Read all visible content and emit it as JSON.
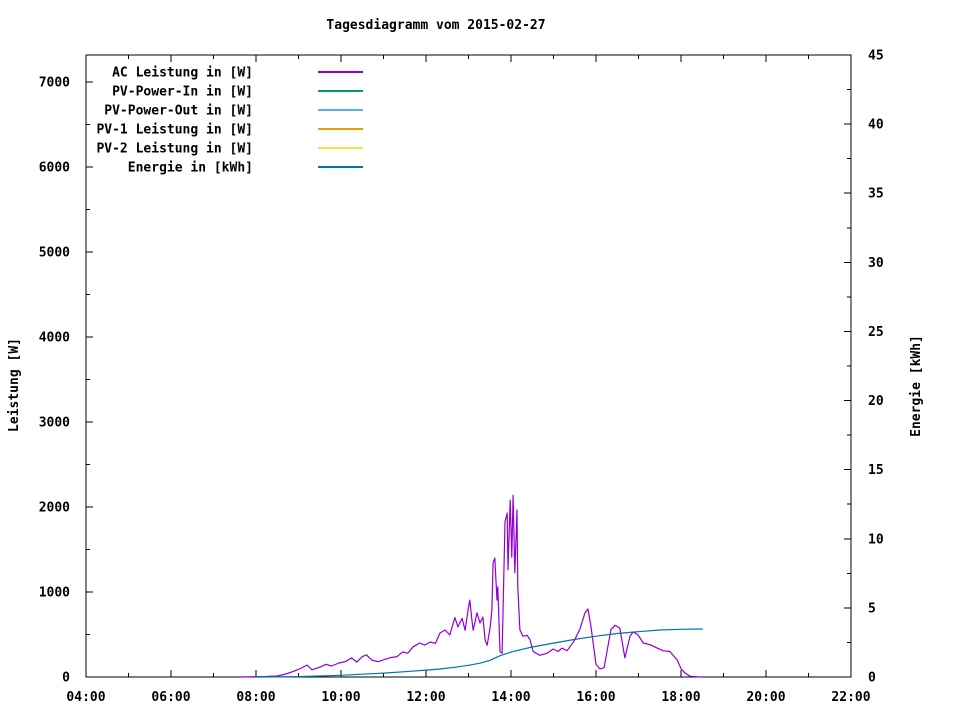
{
  "chart_data": {
    "type": "line",
    "title": "Tagesdiagramm vom 2015-02-27",
    "x_axis": {
      "range_hours": [
        4,
        22
      ],
      "minor_step_hours": 1,
      "major_ticks": [
        {
          "value": 4,
          "label": "04:00"
        },
        {
          "value": 6,
          "label": "06:00"
        },
        {
          "value": 8,
          "label": "08:00"
        },
        {
          "value": 10,
          "label": "10:00"
        },
        {
          "value": 12,
          "label": "12:00"
        },
        {
          "value": 14,
          "label": "14:00"
        },
        {
          "value": 16,
          "label": "16:00"
        },
        {
          "value": 18,
          "label": "18:00"
        },
        {
          "value": 20,
          "label": "20:00"
        },
        {
          "value": 22,
          "label": "22:00"
        }
      ]
    },
    "y_left_axis": {
      "label": "Leistung [W]",
      "range": [
        0,
        7320
      ],
      "minor_step": 500,
      "major_ticks": [
        {
          "value": 0,
          "label": "0"
        },
        {
          "value": 1000,
          "label": "1000"
        },
        {
          "value": 2000,
          "label": "2000"
        },
        {
          "value": 3000,
          "label": "3000"
        },
        {
          "value": 4000,
          "label": "4000"
        },
        {
          "value": 5000,
          "label": "5000"
        },
        {
          "value": 6000,
          "label": "6000"
        },
        {
          "value": 7000,
          "label": "7000"
        }
      ]
    },
    "y_right_axis": {
      "label": "Energie [kWh]",
      "range": [
        0,
        45
      ],
      "minor_step": 2.5,
      "major_ticks": [
        {
          "value": 0,
          "label": "0"
        },
        {
          "value": 5,
          "label": "5"
        },
        {
          "value": 10,
          "label": "10"
        },
        {
          "value": 15,
          "label": "15"
        },
        {
          "value": 20,
          "label": "20"
        },
        {
          "value": 25,
          "label": "25"
        },
        {
          "value": 30,
          "label": "30"
        },
        {
          "value": 35,
          "label": "35"
        },
        {
          "value": 40,
          "label": "40"
        },
        {
          "value": 45,
          "label": "45"
        }
      ]
    },
    "legend": [
      {
        "label": "AC Leistung in [W]",
        "color": "#9400D3"
      },
      {
        "label": "PV-Power-In in [W]",
        "color": "#009E73"
      },
      {
        "label": "PV-Power-Out in [W]",
        "color": "#56B4E9"
      },
      {
        "label": "PV-1 Leistung in [W]",
        "color": "#E69F00"
      },
      {
        "label": "PV-2 Leistung in [W]",
        "color": "#F0E442"
      },
      {
        "label": "Energie in [kWh]",
        "color": "#0072B2"
      }
    ],
    "series": [
      {
        "name": "AC Leistung in [W]",
        "axis": "left",
        "color": "#9400D3",
        "points": [
          [
            7.67,
            0
          ],
          [
            7.95,
            3
          ],
          [
            8.25,
            6
          ],
          [
            8.5,
            12
          ],
          [
            8.7,
            35
          ],
          [
            8.9,
            70
          ],
          [
            9.05,
            100
          ],
          [
            9.2,
            140
          ],
          [
            9.32,
            85
          ],
          [
            9.5,
            115
          ],
          [
            9.65,
            150
          ],
          [
            9.78,
            130
          ],
          [
            9.95,
            165
          ],
          [
            10.1,
            180
          ],
          [
            10.25,
            225
          ],
          [
            10.37,
            175
          ],
          [
            10.5,
            240
          ],
          [
            10.6,
            260
          ],
          [
            10.72,
            200
          ],
          [
            10.87,
            180
          ],
          [
            11.02,
            205
          ],
          [
            11.17,
            228
          ],
          [
            11.32,
            240
          ],
          [
            11.45,
            295
          ],
          [
            11.57,
            280
          ],
          [
            11.7,
            355
          ],
          [
            11.85,
            400
          ],
          [
            11.97,
            375
          ],
          [
            12.1,
            412
          ],
          [
            12.22,
            395
          ],
          [
            12.33,
            518
          ],
          [
            12.45,
            553
          ],
          [
            12.56,
            495
          ],
          [
            12.68,
            700
          ],
          [
            12.75,
            590
          ],
          [
            12.85,
            690
          ],
          [
            12.92,
            550
          ],
          [
            12.99,
            790
          ],
          [
            13.03,
            905
          ],
          [
            13.08,
            670
          ],
          [
            13.11,
            550
          ],
          [
            13.2,
            755
          ],
          [
            13.27,
            635
          ],
          [
            13.34,
            705
          ],
          [
            13.39,
            435
          ],
          [
            13.44,
            375
          ],
          [
            13.51,
            590
          ],
          [
            13.55,
            790
          ],
          [
            13.58,
            1340
          ],
          [
            13.62,
            1400
          ],
          [
            13.67,
            905
          ],
          [
            13.69,
            1060
          ],
          [
            13.74,
            295
          ],
          [
            13.79,
            280
          ],
          [
            13.81,
            705
          ],
          [
            13.86,
            1825
          ],
          [
            13.91,
            1930
          ],
          [
            13.93,
            1260
          ],
          [
            13.98,
            2080
          ],
          [
            14.02,
            1410
          ],
          [
            14.05,
            2140
          ],
          [
            14.09,
            1225
          ],
          [
            14.14,
            1965
          ],
          [
            14.16,
            1060
          ],
          [
            14.21,
            555
          ],
          [
            14.28,
            480
          ],
          [
            14.38,
            490
          ],
          [
            14.45,
            435
          ],
          [
            14.52,
            300
          ],
          [
            14.68,
            255
          ],
          [
            14.85,
            280
          ],
          [
            14.99,
            330
          ],
          [
            15.11,
            300
          ],
          [
            15.2,
            340
          ],
          [
            15.32,
            310
          ],
          [
            15.48,
            420
          ],
          [
            15.62,
            560
          ],
          [
            15.74,
            755
          ],
          [
            15.81,
            800
          ],
          [
            15.88,
            600
          ],
          [
            16.0,
            150
          ],
          [
            16.09,
            95
          ],
          [
            16.19,
            110
          ],
          [
            16.35,
            555
          ],
          [
            16.45,
            610
          ],
          [
            16.56,
            575
          ],
          [
            16.68,
            225
          ],
          [
            16.8,
            480
          ],
          [
            16.87,
            530
          ],
          [
            16.99,
            495
          ],
          [
            17.11,
            400
          ],
          [
            17.27,
            380
          ],
          [
            17.44,
            340
          ],
          [
            17.58,
            310
          ],
          [
            17.74,
            300
          ],
          [
            17.91,
            200
          ],
          [
            18.0,
            100
          ],
          [
            18.09,
            50
          ],
          [
            18.21,
            10
          ],
          [
            18.45,
            0
          ]
        ]
      },
      {
        "name": "PV-Power-In in [W]",
        "axis": "left",
        "color": "#009E73",
        "points": []
      },
      {
        "name": "PV-Power-Out in [W]",
        "axis": "left",
        "color": "#56B4E9",
        "points": []
      },
      {
        "name": "PV-1 Leistung in [W]",
        "axis": "left",
        "color": "#E69F00",
        "points": []
      },
      {
        "name": "PV-2 Leistung in [W]",
        "axis": "left",
        "color": "#F0E442",
        "points": []
      },
      {
        "name": "Energie in [kWh]",
        "axis": "right",
        "color": "#0072B2",
        "points": [
          [
            8.0,
            0
          ],
          [
            8.5,
            0.01
          ],
          [
            9.0,
            0.03
          ],
          [
            9.5,
            0.07
          ],
          [
            10.0,
            0.12
          ],
          [
            10.5,
            0.2
          ],
          [
            11.0,
            0.28
          ],
          [
            11.5,
            0.38
          ],
          [
            12.0,
            0.5
          ],
          [
            12.33,
            0.58
          ],
          [
            12.67,
            0.7
          ],
          [
            13.0,
            0.85
          ],
          [
            13.27,
            1.0
          ],
          [
            13.5,
            1.2
          ],
          [
            13.75,
            1.55
          ],
          [
            14.0,
            1.8
          ],
          [
            14.25,
            2.0
          ],
          [
            14.5,
            2.17
          ],
          [
            15.0,
            2.45
          ],
          [
            15.5,
            2.72
          ],
          [
            16.0,
            2.95
          ],
          [
            16.5,
            3.15
          ],
          [
            17.0,
            3.28
          ],
          [
            17.5,
            3.4
          ],
          [
            18.0,
            3.45
          ],
          [
            18.5,
            3.47
          ]
        ]
      }
    ]
  }
}
